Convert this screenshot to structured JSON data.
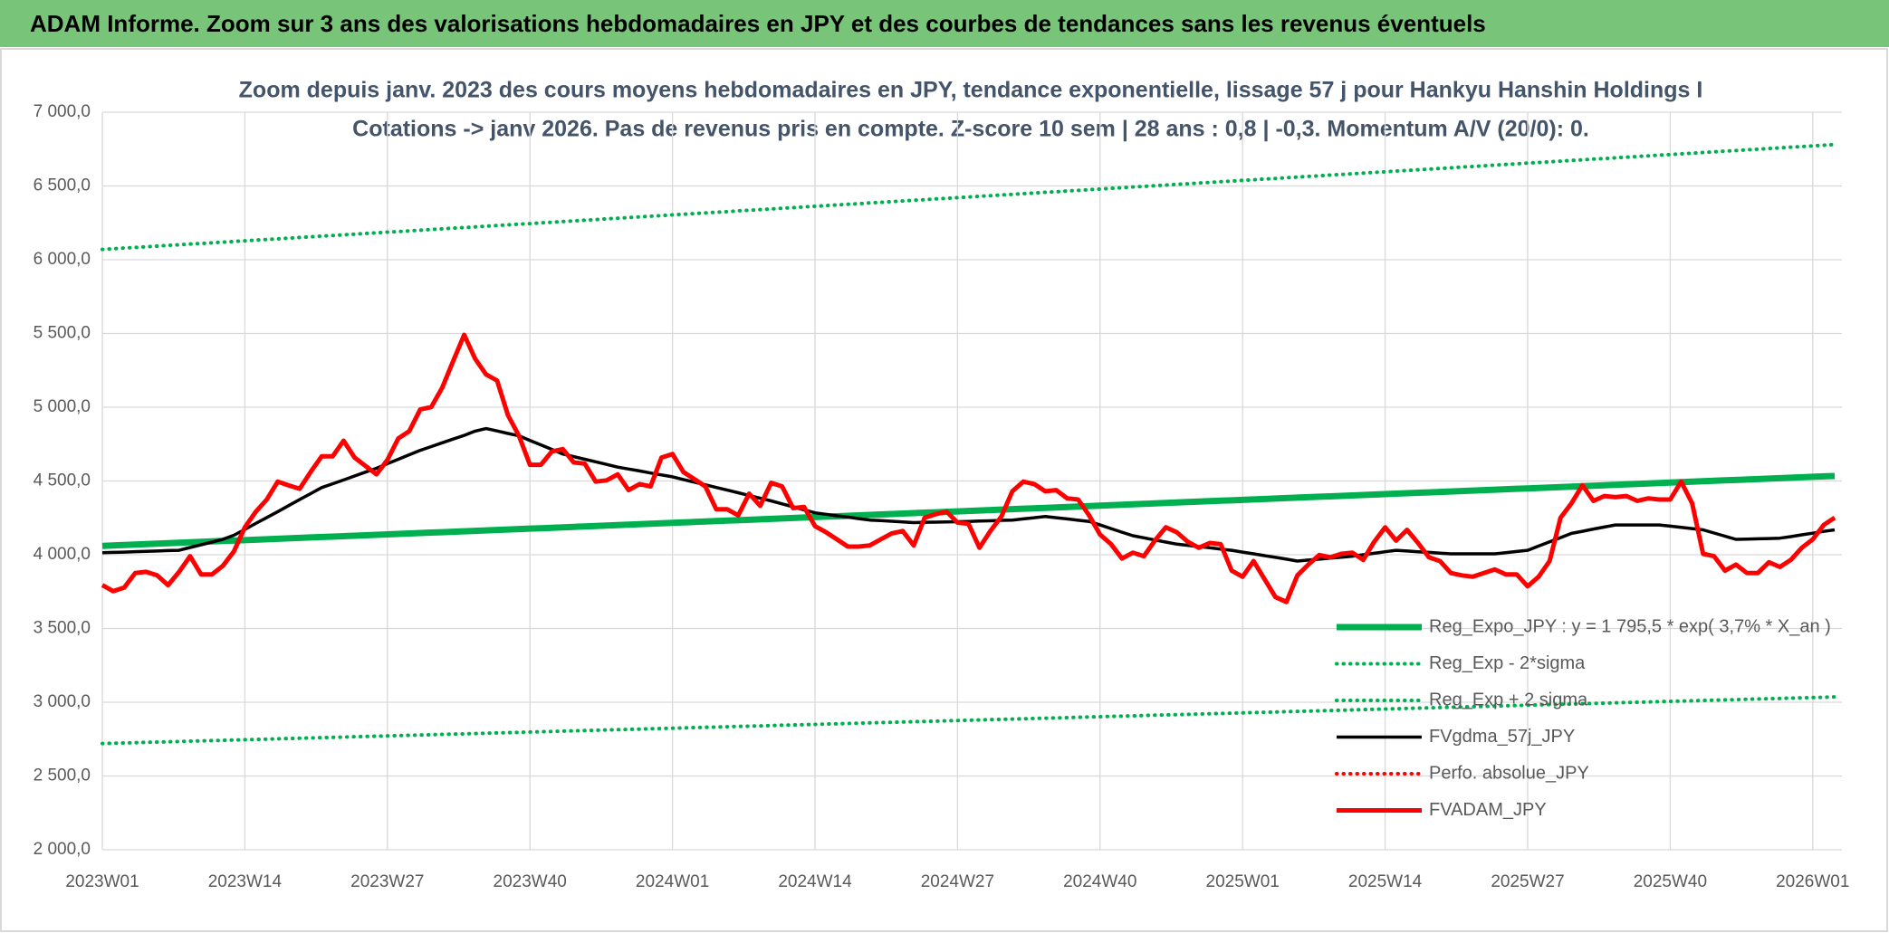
{
  "header": "ADAM Informe. Zoom sur 3 ans des valorisations hebdomadaires en JPY et des courbes de tendances sans les revenus éventuels",
  "chart_data": {
    "type": "line",
    "title": "Zoom depuis janv. 2023 des cours moyens hebdomadaires en JPY, tendance exponentielle, lissage 57 j pour Hankyu Hanshin Holdings I",
    "subtitle": "Cotations -> janv 2026. Pas de revenus pris en compte. Z-score 10 sem | 28 ans : 0,8 | -0,3. Momentum A/V (20/0): 0.",
    "categories": [
      "2023W01",
      null,
      null,
      null,
      null,
      null,
      null,
      null,
      null,
      null,
      null,
      null,
      null,
      "2023W14",
      null,
      null,
      null,
      null,
      null,
      null,
      null,
      null,
      null,
      null,
      null,
      null,
      "2023W27",
      null,
      null,
      null,
      null,
      null,
      null,
      null,
      null,
      null,
      null,
      null,
      null,
      "2023W40",
      null,
      null,
      null,
      null,
      null,
      null,
      null,
      null,
      null,
      null,
      null,
      null,
      "2024W01",
      null,
      null,
      null,
      null,
      null,
      null,
      null,
      null,
      null,
      null,
      null,
      null,
      "2024W14",
      null,
      null,
      null,
      null,
      null,
      null,
      null,
      null,
      null,
      null,
      null,
      null,
      "2024W27",
      null,
      null,
      null,
      null,
      null,
      null,
      null,
      null,
      null,
      null,
      null,
      null,
      "2024W40",
      null,
      null,
      null,
      null,
      null,
      null,
      null,
      null,
      null,
      null,
      null,
      null,
      "2025W01",
      null,
      null,
      null,
      null,
      null,
      null,
      null,
      null,
      null,
      null,
      null,
      null,
      "2025W14",
      null,
      null,
      null,
      null,
      null,
      null,
      null,
      null,
      null,
      null,
      null,
      null,
      "2025W27",
      null,
      null,
      null,
      null,
      null,
      null,
      null,
      null,
      null,
      null,
      null,
      null,
      "2025W40",
      null,
      null,
      null,
      null,
      null,
      null,
      null,
      null,
      null,
      null,
      null,
      null,
      "2026W01",
      null,
      null
    ],
    "ylim": [
      2000,
      7000
    ],
    "yticks": [
      {
        "value": 2000,
        "label": "2 000,0"
      },
      {
        "value": 2500,
        "label": "2 500,0"
      },
      {
        "value": 3000,
        "label": "3 000,0"
      },
      {
        "value": 3500,
        "label": "3 500,0"
      },
      {
        "value": 4000,
        "label": "4 000,0"
      },
      {
        "value": 4500,
        "label": "4 500,0"
      },
      {
        "value": 5000,
        "label": "5 000,0"
      },
      {
        "value": 5500,
        "label": "5 500,0"
      },
      {
        "value": 6000,
        "label": "6 000,0"
      },
      {
        "value": 6500,
        "label": "6 500,0"
      },
      {
        "value": 7000,
        "label": "7 000,0"
      }
    ],
    "grid": true,
    "legend": "lower right",
    "series": [
      {
        "name": "Reg_Expo_JPY : y = 1 795,5 * exp( 3,7% *  X_an )",
        "color": "#00b050",
        "line_style": "solid",
        "values": [
          4060,
          4063,
          4066,
          4069,
          4072,
          4075,
          4078,
          4081,
          4084,
          4087,
          4090,
          4093,
          4096,
          4099,
          4102,
          4105,
          4108,
          4111,
          4114,
          4117,
          4120,
          4123,
          4126,
          4129,
          4132,
          4135,
          4138,
          4141,
          4144,
          4147,
          4150,
          4153,
          4156,
          4159,
          4162,
          4165,
          4168,
          4171,
          4174,
          4177,
          4180,
          4183,
          4186,
          4189,
          4192,
          4195,
          4198,
          4201,
          4204,
          4207,
          4210,
          4213,
          4216,
          4219,
          4222,
          4225,
          4228,
          4231,
          4234,
          4237,
          4240,
          4243,
          4246,
          4249,
          4252,
          4255,
          4258,
          4261,
          4264,
          4267,
          4270,
          4273,
          4276,
          4279,
          4282,
          4285,
          4288,
          4291,
          4294,
          4297,
          4300,
          4303,
          4306,
          4309,
          4312,
          4315,
          4318,
          4321,
          4324,
          4327,
          4330,
          4333,
          4336,
          4339,
          4342,
          4345,
          4348,
          4351,
          4354,
          4357,
          4360,
          4363,
          4366,
          4369,
          4372,
          4375,
          4378,
          4381,
          4384,
          4387,
          4390,
          4393,
          4396,
          4399,
          4402,
          4405,
          4408,
          4411,
          4414,
          4417,
          4420,
          4423,
          4426,
          4429,
          4432,
          4435,
          4438,
          4441,
          4444,
          4447,
          4450,
          4453,
          4456,
          4459,
          4462,
          4465,
          4468,
          4471,
          4474,
          4477,
          4480,
          4483,
          4486,
          4489,
          4492,
          4495,
          4498,
          4501,
          4504,
          4507,
          4510,
          4513,
          4516,
          4519,
          4522,
          4525,
          4528,
          4531,
          4534
        ]
      },
      {
        "name": "Reg_Exp - 2*sigma",
        "color": "#00b050",
        "line_style": "dotted",
        "values": [
          2720,
          2722,
          2724,
          2726,
          2728,
          2730,
          2732,
          2734,
          2736,
          2738,
          2740,
          2742,
          2744,
          2746,
          2748,
          2750,
          2752,
          2754,
          2756,
          2758,
          2760,
          2762,
          2764,
          2766,
          2768,
          2770,
          2772,
          2774,
          2776,
          2778,
          2780,
          2782,
          2784,
          2786,
          2788,
          2790,
          2792,
          2794,
          2796,
          2798,
          2800,
          2802,
          2804,
          2806,
          2808,
          2810,
          2812,
          2814,
          2816,
          2818,
          2820,
          2822,
          2824,
          2826,
          2828,
          2830,
          2832,
          2834,
          2836,
          2838,
          2840,
          2842,
          2844,
          2846,
          2848,
          2850,
          2852,
          2854,
          2856,
          2858,
          2860,
          2862,
          2864,
          2866,
          2868,
          2870,
          2872,
          2874,
          2876,
          2878,
          2880,
          2882,
          2884,
          2886,
          2888,
          2890,
          2892,
          2894,
          2896,
          2898,
          2900,
          2902,
          2904,
          2906,
          2908,
          2910,
          2912,
          2914,
          2916,
          2918,
          2920,
          2922,
          2924,
          2926,
          2928,
          2930,
          2932,
          2934,
          2936,
          2938,
          2940,
          2942,
          2944,
          2946,
          2948,
          2950,
          2952,
          2954,
          2956,
          2958,
          2960,
          2962,
          2964,
          2966,
          2968,
          2970,
          2972,
          2974,
          2976,
          2978,
          2980,
          2982,
          2984,
          2986,
          2988,
          2990,
          2992,
          2994,
          2996,
          2998,
          3000,
          3002,
          3004,
          3006,
          3008,
          3010,
          3012,
          3014,
          3016,
          3018,
          3020,
          3022,
          3024,
          3026,
          3028,
          3030,
          3032,
          3034,
          3036
        ]
      },
      {
        "name": "Reg_Exp + 2 sigma",
        "color": "#00b050",
        "line_style": "dotted",
        "values": [
          6070,
          6074,
          6079,
          6083,
          6088,
          6092,
          6097,
          6101,
          6106,
          6110,
          6115,
          6119,
          6124,
          6128,
          6133,
          6137,
          6142,
          6146,
          6151,
          6155,
          6160,
          6164,
          6169,
          6173,
          6178,
          6182,
          6187,
          6191,
          6196,
          6200,
          6205,
          6209,
          6214,
          6218,
          6223,
          6227,
          6232,
          6236,
          6241,
          6245,
          6250,
          6254,
          6259,
          6263,
          6268,
          6272,
          6277,
          6281,
          6286,
          6290,
          6295,
          6299,
          6304,
          6308,
          6313,
          6317,
          6322,
          6326,
          6331,
          6335,
          6340,
          6344,
          6349,
          6353,
          6358,
          6362,
          6367,
          6371,
          6376,
          6380,
          6385,
          6389,
          6394,
          6398,
          6403,
          6407,
          6412,
          6416,
          6421,
          6425,
          6430,
          6434,
          6439,
          6443,
          6448,
          6452,
          6457,
          6461,
          6466,
          6470,
          6475,
          6479,
          6484,
          6488,
          6493,
          6497,
          6502,
          6506,
          6511,
          6515,
          6520,
          6524,
          6529,
          6533,
          6538,
          6542,
          6547,
          6551,
          6556,
          6560,
          6565,
          6569,
          6574,
          6578,
          6583,
          6587,
          6592,
          6596,
          6601,
          6605,
          6610,
          6614,
          6619,
          6623,
          6628,
          6632,
          6637,
          6641,
          6646,
          6650,
          6655,
          6659,
          6664,
          6668,
          6673,
          6677,
          6682,
          6686,
          6691,
          6695,
          6700,
          6704,
          6709,
          6713,
          6718,
          6722,
          6727,
          6731,
          6736,
          6740,
          6745,
          6749,
          6754,
          6758,
          6763,
          6767,
          6772,
          6776,
          6781
        ]
      },
      {
        "name": "FVgdma_57j_JPY",
        "color": "#000000",
        "line_style": "solid",
        "values": [
          4014,
          4016,
          4018,
          4021,
          4023,
          4025,
          4028,
          4030,
          4049,
          4067,
          4086,
          4105,
          4132,
          4172,
          4212,
          4252,
          4292,
          4333,
          4374,
          4414,
          4455,
          4481,
          4507,
          4534,
          4560,
          4586,
          4617,
          4647,
          4678,
          4708,
          4733,
          4759,
          4784,
          4809,
          4838,
          4855,
          4839,
          4822,
          4806,
          4775,
          4745,
          4714,
          4683,
          4665,
          4647,
          4630,
          4612,
          4594,
          4581,
          4568,
          4554,
          4541,
          4528,
          4510,
          4492,
          4474,
          4456,
          4438,
          4420,
          4401,
          4383,
          4365,
          4345,
          4325,
          4304,
          4284,
          4274,
          4264,
          4255,
          4245,
          4235,
          4231,
          4227,
          4222,
          4218,
          4220,
          4221,
          4223,
          4224,
          4226,
          4228,
          4230,
          4233,
          4235,
          4243,
          4251,
          4259,
          4251,
          4243,
          4234,
          4226,
          4202,
          4177,
          4153,
          4129,
          4115,
          4100,
          4086,
          4072,
          4064,
          4055,
          4047,
          4038,
          4030,
          4018,
          4006,
          3994,
          3982,
          3970,
          3957,
          3964,
          3970,
          3977,
          3983,
          3990,
          4000,
          4010,
          4020,
          4030,
          4025,
          4020,
          4016,
          4011,
          4006,
          4006,
          4006,
          4006,
          4006,
          4014,
          4022,
          4030,
          4059,
          4088,
          4116,
          4145,
          4159,
          4174,
          4188,
          4202,
          4202,
          4202,
          4202,
          4202,
          4194,
          4186,
          4177,
          4169,
          4147,
          4126,
          4104,
          4106,
          4108,
          4110,
          4112,
          4123,
          4135,
          4146,
          4158,
          4169
        ]
      },
      {
        "name": "Perfo. absolue_JPY",
        "color": "#ff0000",
        "line_style": "dotted",
        "values": [
          null,
          null,
          null,
          null,
          null,
          null,
          null,
          null,
          null,
          null,
          null,
          null,
          null,
          null,
          null,
          null,
          null,
          null,
          null,
          null,
          null,
          null,
          null,
          null,
          null,
          null,
          null,
          null,
          null,
          null,
          null,
          null,
          null,
          null,
          null,
          null,
          null,
          null,
          null,
          null,
          null,
          null,
          null,
          null,
          null,
          null,
          null,
          null,
          null,
          null,
          null,
          null,
          null,
          null,
          null,
          null,
          null,
          null,
          null,
          null,
          null,
          null,
          null,
          null,
          null,
          null,
          null,
          null,
          null,
          null,
          null,
          null,
          null,
          null,
          null,
          null,
          null,
          null,
          null,
          null,
          null,
          null,
          null,
          null,
          null,
          null,
          null,
          null,
          null,
          null,
          null,
          null,
          null,
          null,
          null,
          null,
          null,
          null,
          null,
          null,
          null,
          null,
          null,
          null,
          null,
          null,
          null,
          null,
          null,
          null,
          null,
          null,
          null,
          null,
          null,
          null,
          null,
          null,
          null,
          null,
          null,
          null,
          null,
          null,
          null,
          null,
          null,
          null,
          null,
          null,
          null,
          null,
          null,
          null,
          null,
          null,
          null,
          null,
          null,
          null,
          null,
          null,
          null,
          null,
          null,
          null,
          null,
          null,
          null,
          null,
          null,
          null,
          null,
          null,
          null,
          null,
          null,
          null,
          null
        ]
      },
      {
        "name": "FVADAM_JPY",
        "color": "#ff0000",
        "line_style": "solid",
        "values": [
          3794,
          3753,
          3778,
          3876,
          3884,
          3860,
          3794,
          3884,
          3990,
          3867,
          3867,
          3925,
          4023,
          4186,
          4292,
          4374,
          4496,
          4470,
          4447,
          4561,
          4667,
          4667,
          4773,
          4659,
          4602,
          4545,
          4643,
          4789,
          4838,
          4985,
          5001,
          5132,
          5312,
          5491,
          5328,
          5222,
          5181,
          4945,
          4806,
          4610,
          4610,
          4700,
          4716,
          4626,
          4618,
          4496,
          4504,
          4545,
          4438,
          4479,
          4463,
          4659,
          4683,
          4561,
          4512,
          4463,
          4308,
          4308,
          4267,
          4414,
          4332,
          4488,
          4463,
          4316,
          4324,
          4194,
          4153,
          4104,
          4055,
          4055,
          4063,
          4104,
          4145,
          4161,
          4063,
          4251,
          4275,
          4292,
          4218,
          4210,
          4047,
          4161,
          4259,
          4430,
          4496,
          4479,
          4430,
          4438,
          4382,
          4374,
          4267,
          4137,
          4072,
          3974,
          4014,
          3990,
          4096,
          4186,
          4153,
          4088,
          4047,
          4080,
          4072,
          3892,
          3851,
          3957,
          3835,
          3713,
          3680,
          3860,
          3933,
          3998,
          3982,
          4006,
          4014,
          3965,
          4088,
          4186,
          4096,
          4169,
          4080,
          3982,
          3957,
          3876,
          3860,
          3851,
          3876,
          3900,
          3867,
          3867,
          3786,
          3851,
          3957,
          4251,
          4349,
          4471,
          4365,
          4398,
          4390,
          4398,
          4365,
          4382,
          4374,
          4374,
          4496,
          4349,
          4006,
          3990,
          3892,
          3933,
          3876,
          3876,
          3949,
          3917,
          3965,
          4047,
          4104,
          4202,
          4251
        ]
      }
    ]
  }
}
